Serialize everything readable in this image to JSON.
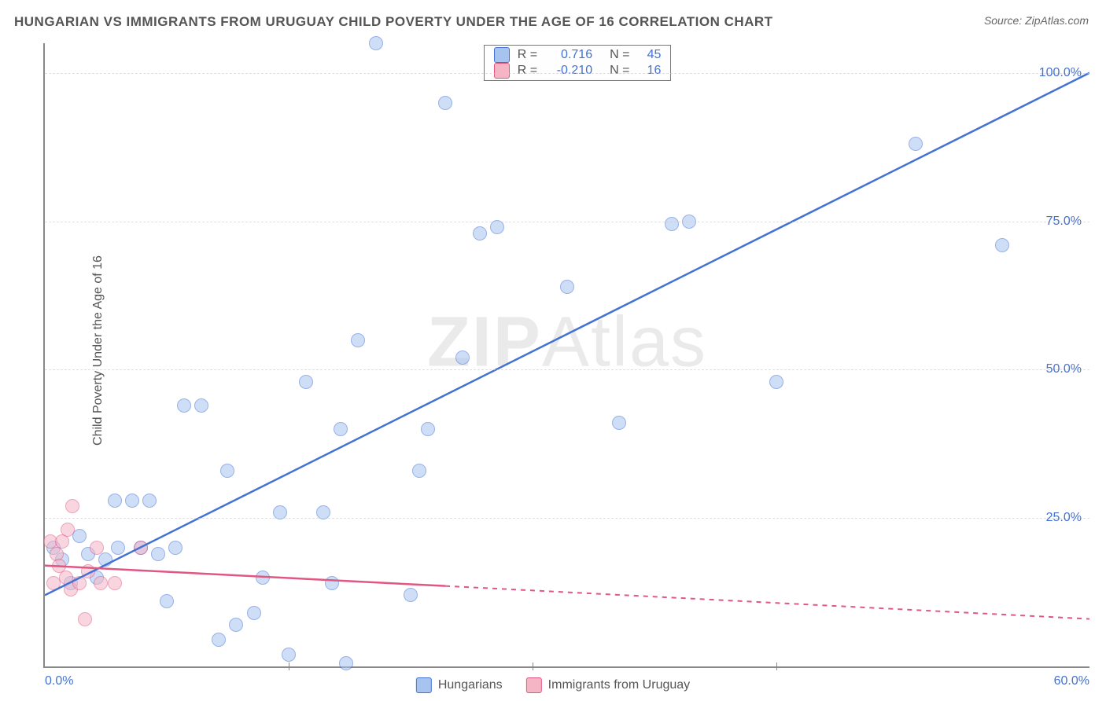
{
  "title": "HUNGARIAN VS IMMIGRANTS FROM URUGUAY CHILD POVERTY UNDER THE AGE OF 16 CORRELATION CHART",
  "source": "Source: ZipAtlas.com",
  "ylabel": "Child Poverty Under the Age of 16",
  "watermark_part1": "ZIP",
  "watermark_part2": "Atlas",
  "chart": {
    "type": "scatter",
    "xlim": [
      0,
      60
    ],
    "ylim": [
      0,
      105
    ],
    "xticks": [
      0.0,
      60.0
    ],
    "xticks_fmt": [
      "0.0%",
      "60.0%"
    ],
    "xtick_minor": [
      14,
      28,
      42
    ],
    "yticks": [
      25.0,
      50.0,
      75.0,
      100.0
    ],
    "yticks_fmt": [
      "25.0%",
      "50.0%",
      "75.0%",
      "100.0%"
    ],
    "grid_color": "#cccccc",
    "axis_color": "#888888",
    "background_color": "#ffffff",
    "tick_label_color": "#4472d4",
    "marker_radius": 9,
    "series": [
      {
        "name": "Hungarians",
        "label": "Hungarians",
        "fill": "#a7c4f0",
        "stroke": "#4472d4",
        "R": "0.716",
        "N": "45",
        "trend": {
          "x1": 0,
          "y1": 12,
          "x2": 60,
          "y2": 100,
          "dash": false,
          "solid_until_x": 60
        },
        "points": [
          [
            0.5,
            20
          ],
          [
            1,
            18
          ],
          [
            1.5,
            14
          ],
          [
            2,
            22
          ],
          [
            2.5,
            19
          ],
          [
            3,
            15
          ],
          [
            3.5,
            18
          ],
          [
            4,
            28
          ],
          [
            4.2,
            20
          ],
          [
            5,
            28
          ],
          [
            5.5,
            20
          ],
          [
            6,
            28
          ],
          [
            6.5,
            19
          ],
          [
            7,
            11
          ],
          [
            7.5,
            20
          ],
          [
            8,
            44
          ],
          [
            9,
            44
          ],
          [
            10,
            4.5
          ],
          [
            10.5,
            33
          ],
          [
            11,
            7
          ],
          [
            12,
            9
          ],
          [
            12.5,
            15
          ],
          [
            13.5,
            26
          ],
          [
            14,
            2
          ],
          [
            15,
            48
          ],
          [
            16,
            26
          ],
          [
            16.5,
            14
          ],
          [
            17,
            40
          ],
          [
            17.3,
            0.5
          ],
          [
            18,
            55
          ],
          [
            19,
            105
          ],
          [
            21,
            12
          ],
          [
            21.5,
            33
          ],
          [
            22,
            40
          ],
          [
            23,
            95
          ],
          [
            24,
            52
          ],
          [
            25,
            73
          ],
          [
            26,
            74
          ],
          [
            30,
            64
          ],
          [
            33,
            41
          ],
          [
            36,
            74.5
          ],
          [
            37,
            75
          ],
          [
            42,
            48
          ],
          [
            50,
            88
          ],
          [
            55,
            71
          ]
        ]
      },
      {
        "name": "Immigrants from Uruguay",
        "label": "Immigrants from Uruguay",
        "fill": "#f5b5c5",
        "stroke": "#e05882",
        "R": "-0.210",
        "N": "16",
        "trend": {
          "x1": 0,
          "y1": 17,
          "x2": 60,
          "y2": 8,
          "dash": true,
          "solid_until_x": 23
        },
        "points": [
          [
            0.3,
            21
          ],
          [
            0.5,
            14
          ],
          [
            0.7,
            19
          ],
          [
            0.8,
            17
          ],
          [
            1,
            21
          ],
          [
            1.2,
            15
          ],
          [
            1.3,
            23
          ],
          [
            1.5,
            13
          ],
          [
            1.6,
            27
          ],
          [
            2,
            14
          ],
          [
            2.3,
            8
          ],
          [
            2.5,
            16
          ],
          [
            3,
            20
          ],
          [
            3.2,
            14
          ],
          [
            4,
            14
          ],
          [
            5.5,
            20
          ]
        ]
      }
    ]
  },
  "stats_labels": {
    "R": "R =",
    "N": "N ="
  }
}
